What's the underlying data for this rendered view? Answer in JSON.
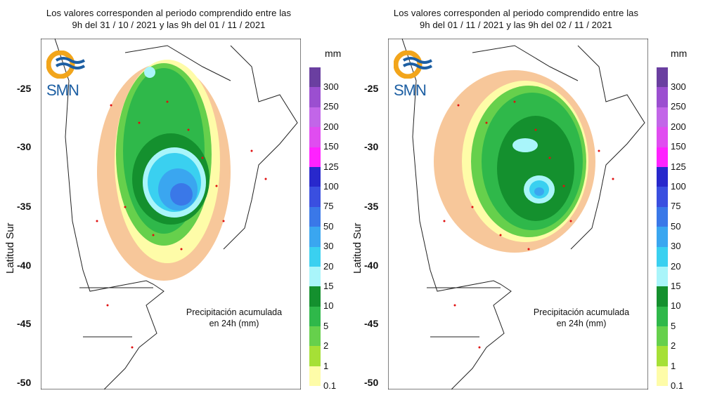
{
  "legend": {
    "unit": "mm",
    "labels": [
      "300",
      "250",
      "200",
      "150",
      "125",
      "100",
      "75",
      "50",
      "30",
      "20",
      "15",
      "10",
      "5",
      "2",
      "1",
      "0.1"
    ],
    "colors": [
      "#6a3fa0",
      "#9b4fd0",
      "#c266e8",
      "#e04df0",
      "#ff22ff",
      "#2828cc",
      "#3a4fe0",
      "#3a78e8",
      "#3aa6f0",
      "#3ad0f0",
      "#a9f5fa",
      "#14902e",
      "#2fb84a",
      "#66d04c",
      "#a6e036",
      "#fefca8",
      "#f7c79a"
    ]
  },
  "y_axis": {
    "label": "Latitud Sur",
    "ticks": [
      "-25",
      "-30",
      "-35",
      "-40",
      "-45",
      "-50"
    ]
  },
  "logo": {
    "text": "SMN"
  },
  "note": {
    "line1": "Precipitación acumulada",
    "line2": "en 24h (mm)"
  },
  "panels": [
    {
      "title_line1": "Los valores corresponden al periodo comprendido entre las",
      "title_line2": "9h del 31 / 10 / 2021  y las 9h del 01 / 11 / 2021"
    },
    {
      "title_line1": "Los valores corresponden al periodo comprendido entre las",
      "title_line2": "9h del 01 / 11 / 2021  y las 9h del 02 / 11 / 2021"
    }
  ]
}
